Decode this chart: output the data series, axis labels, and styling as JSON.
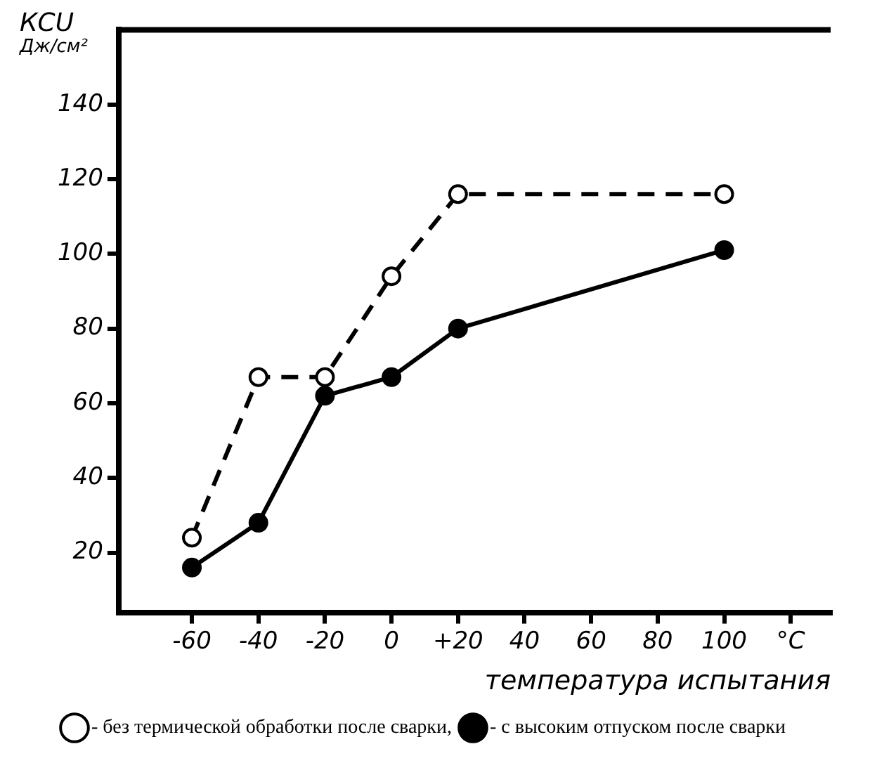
{
  "chart_data": {
    "type": "line",
    "xlabel": "температура испытания",
    "ylabel": "КСU\nДж/см²",
    "x": [
      -60,
      -40,
      -20,
      0,
      20,
      100
    ],
    "series": [
      {
        "name": "- без термической обработки после сварки,",
        "color": "#000000",
        "values": [
          24,
          67,
          67,
          94,
          116,
          116
        ],
        "line_style": "dashed"
      },
      {
        "name": "- с высоким отпуском после сварки",
        "color": "#000000",
        "values": [
          16,
          28,
          62,
          67,
          80,
          101
        ],
        "line_style": "solid"
      }
    ],
    "xlim": [
      -82,
      132
    ],
    "ylim": [
      4,
      160
    ],
    "xticks": [
      -60,
      -40,
      -20,
      0,
      {
        "value": 20,
        "label": "+20"
      },
      40,
      60,
      80,
      100,
      {
        "value": 120,
        "label": "°C"
      }
    ],
    "yticks": [
      20,
      40,
      60,
      80,
      100,
      120,
      140
    ],
    "grid": false,
    "legend": "bottom",
    "marker": "circle"
  }
}
